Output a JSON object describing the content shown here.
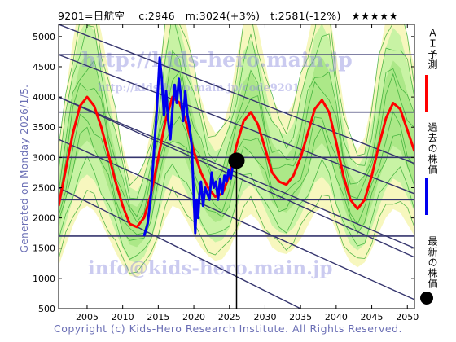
{
  "header": {
    "title": "9201=日航空　 c:2946　m:3024(+3%)　t:2581(-12%)　★★★★★"
  },
  "side_label": "Generated on Monday 2026/1/5.",
  "watermarks": {
    "top": "http://kids-hero.main.jp",
    "sub": "http://kids-hero.main.jp/code9201",
    "bottom": "info@kids-hero.main.jp"
  },
  "legend": [
    {
      "label": "ＡＩ予測",
      "color": "#ff0000"
    },
    {
      "label": "過去の株価",
      "color": "#0000ee"
    },
    {
      "label": "最新の株価",
      "color": "#000000"
    }
  ],
  "footer": {
    "copyright": "Copyright (c) Kids-Hero Research Institute. All Rights Reserved."
  },
  "colors": {
    "ai_forecast": "#ff0000",
    "past_price": "#0000ee",
    "trend_lines": "#35356e",
    "band_fill": "#bff2a0",
    "band_lines": "#2ea82e",
    "yellow_fill": "#f4f4a8"
  },
  "chart_data": {
    "type": "line",
    "xlim": [
      2001,
      2051
    ],
    "ylim": [
      500,
      5200
    ],
    "x_ticks": [
      2005,
      2010,
      2015,
      2020,
      2025,
      2030,
      2035,
      2040,
      2045,
      2050
    ],
    "y_ticks": [
      500,
      1000,
      1500,
      2000,
      2500,
      3000,
      3500,
      4000,
      4500,
      5000
    ],
    "grid": false,
    "latest": {
      "x": 2026.0,
      "y": 2946
    },
    "horizontal_lines": [
      1700,
      2300,
      3000,
      3750,
      4700
    ],
    "trend_lines": [
      {
        "x0": 2001,
        "y0": 4700,
        "x1": 2051,
        "y1": 2400
      },
      {
        "x0": 2001,
        "y0": 4000,
        "x1": 2051,
        "y1": 1350
      },
      {
        "x0": 2001,
        "y0": 3300,
        "x1": 2051,
        "y1": 650
      },
      {
        "x0": 2001,
        "y0": 2500,
        "x1": 2035,
        "y1": 500
      },
      {
        "x0": 2001,
        "y0": 4000,
        "x1": 2051,
        "y1": 1500
      },
      {
        "x0": 2001,
        "y0": 5200,
        "x1": 2051,
        "y1": 2900
      }
    ],
    "series": [
      {
        "name": "ＡＩ予測",
        "x": [
          2001.0,
          2002.0,
          2003.0,
          2004.0,
          2005.0,
          2006.0,
          2007.0,
          2008.0,
          2009.0,
          2010.0,
          2011.0,
          2012.0,
          2013.0,
          2014.0,
          2015.0,
          2016.0,
          2017.0,
          2018.0,
          2019.0,
          2020.0,
          2021.0,
          2022.0,
          2023.0,
          2024.0,
          2025.0,
          2026.0,
          2027.0,
          2028.0,
          2029.0,
          2030.0,
          2031.0,
          2032.0,
          2033.0,
          2034.0,
          2035.0,
          2036.0,
          2037.0,
          2038.0,
          2039.0,
          2040.0,
          2041.0,
          2042.0,
          2043.0,
          2044.0,
          2045.0,
          2046.0,
          2047.0,
          2048.0,
          2049.0,
          2050.0,
          2051.0
        ],
        "y": [
          2200,
          2800,
          3400,
          3850,
          4000,
          3850,
          3500,
          3050,
          2600,
          2200,
          1900,
          1850,
          2000,
          2400,
          3000,
          3600,
          4000,
          3900,
          3550,
          3100,
          2750,
          2500,
          2350,
          2400,
          2700,
          3200,
          3600,
          3750,
          3550,
          3150,
          2750,
          2600,
          2550,
          2700,
          3000,
          3400,
          3800,
          3950,
          3750,
          3250,
          2700,
          2300,
          2150,
          2300,
          2700,
          3200,
          3650,
          3900,
          3800,
          3450,
          3100
        ]
      },
      {
        "name": "過去の株価",
        "x": [
          2013.0,
          2013.5,
          2014.0,
          2014.4,
          2014.8,
          2015.2,
          2015.5,
          2015.8,
          2016.1,
          2016.4,
          2016.7,
          2017.0,
          2017.3,
          2017.6,
          2017.9,
          2018.2,
          2018.5,
          2018.8,
          2019.1,
          2019.4,
          2019.7,
          2020.0,
          2020.2,
          2020.4,
          2020.6,
          2020.8,
          2021.0,
          2021.3,
          2021.6,
          2021.9,
          2022.2,
          2022.5,
          2022.8,
          2023.1,
          2023.4,
          2023.7,
          2024.0,
          2024.3,
          2024.6,
          2024.9,
          2025.2,
          2025.5,
          2025.8
        ],
        "y": [
          1700,
          1900,
          2400,
          3100,
          3800,
          4650,
          4300,
          3700,
          4100,
          3600,
          3300,
          3800,
          4200,
          3900,
          4300,
          4000,
          3600,
          4100,
          3700,
          3500,
          3200,
          2300,
          1750,
          2300,
          2000,
          2400,
          2600,
          2200,
          2500,
          2400,
          2300,
          2750,
          2500,
          2600,
          2300,
          2650,
          2400,
          2700,
          2600,
          2800,
          2650,
          2900,
          3000
        ]
      }
    ]
  }
}
